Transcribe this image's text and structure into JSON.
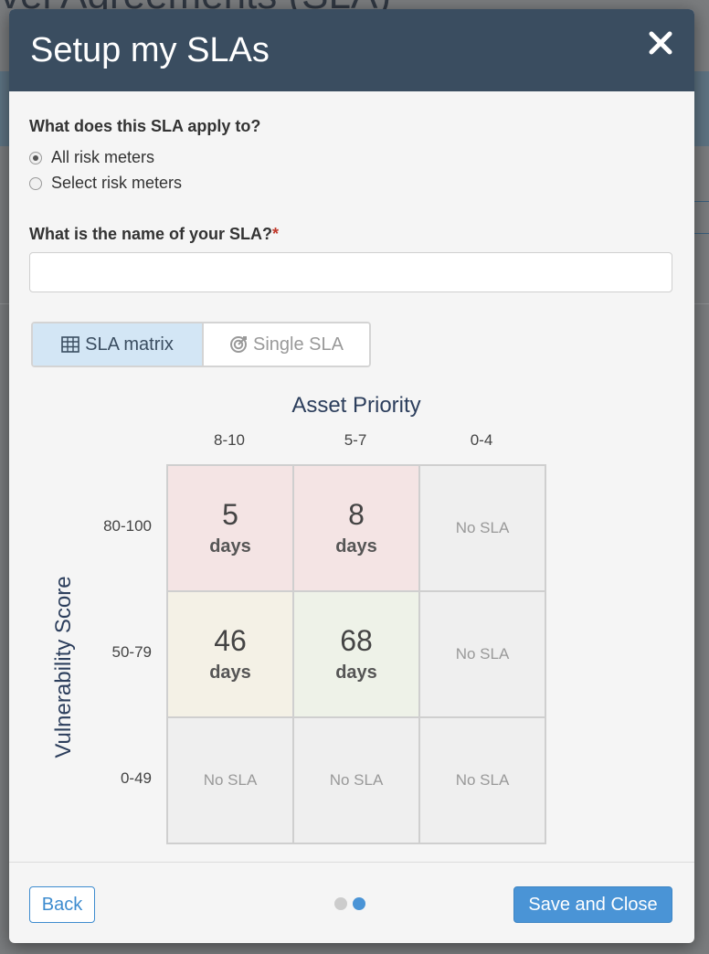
{
  "background": {
    "title_fragment": "vel Agreements (SLA)"
  },
  "modal": {
    "title": "Setup my SLAs",
    "close_icon": "close-icon"
  },
  "scope": {
    "question": "What does this SLA apply to?",
    "options": [
      {
        "label": "All risk meters",
        "checked": true
      },
      {
        "label": "Select risk meters",
        "checked": false
      }
    ]
  },
  "name": {
    "question": "What is the name of your SLA?",
    "required_mark": "*",
    "value": "",
    "placeholder": ""
  },
  "mode_toggle": {
    "options": [
      {
        "label": "SLA matrix",
        "icon": "grid-table-icon",
        "active": true
      },
      {
        "label": "Single SLA",
        "icon": "target-icon",
        "active": false
      }
    ]
  },
  "matrix": {
    "x_axis_title": "Asset Priority",
    "y_axis_title": "Vulnerability Score",
    "columns": [
      "8-10",
      "5-7",
      "0-4"
    ],
    "rows": [
      "80-100",
      "50-79",
      "0-49"
    ],
    "cells": [
      [
        {
          "value": "5",
          "unit": "days",
          "color": "#f4e4e4"
        },
        {
          "value": "8",
          "unit": "days",
          "color": "#f4e4e4"
        },
        {
          "empty_label": "No SLA",
          "color": "#efefef"
        }
      ],
      [
        {
          "value": "46",
          "unit": "days",
          "color": "#f4f1e6"
        },
        {
          "value": "68",
          "unit": "days",
          "color": "#eef2e8"
        },
        {
          "empty_label": "No SLA",
          "color": "#efefef"
        }
      ],
      [
        {
          "empty_label": "No SLA",
          "color": "#efefef"
        },
        {
          "empty_label": "No SLA",
          "color": "#efefef"
        },
        {
          "empty_label": "No SLA",
          "color": "#efefef"
        }
      ]
    ]
  },
  "footer": {
    "back_label": "Back",
    "save_label": "Save and Close",
    "steps_total": 2,
    "current_step": 2
  },
  "colors": {
    "header_bg": "#3a4d60",
    "primary": "#4a94d6",
    "dot_inactive": "#cccccc",
    "dot_active": "#4a94d6"
  }
}
